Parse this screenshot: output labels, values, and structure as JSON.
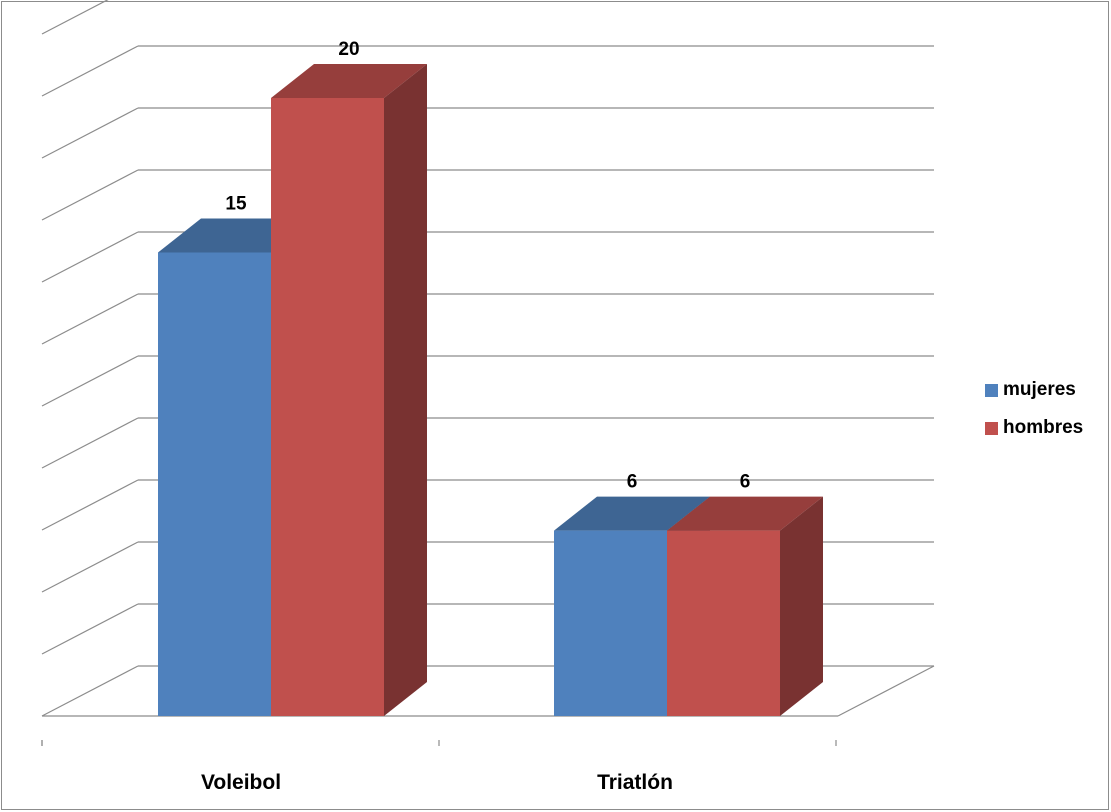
{
  "chart_data": {
    "type": "bar",
    "style": "3d-clustered-column",
    "categories": [
      "Voleibol",
      "Triatlón"
    ],
    "series": [
      {
        "name": "mujeres",
        "values": [
          15,
          6
        ],
        "color": "#4F81BD"
      },
      {
        "name": "hombres",
        "values": [
          20,
          6
        ],
        "color": "#C0504D"
      }
    ],
    "ylim": [
      0,
      22
    ],
    "gridlines": true,
    "data_labels": true,
    "legend": "right",
    "title": "",
    "xlabel": "",
    "ylabel": ""
  },
  "legend": {
    "items": [
      {
        "label": "mujeres",
        "color": "#4F81BD"
      },
      {
        "label": "hombres",
        "color": "#C0504D"
      }
    ]
  }
}
